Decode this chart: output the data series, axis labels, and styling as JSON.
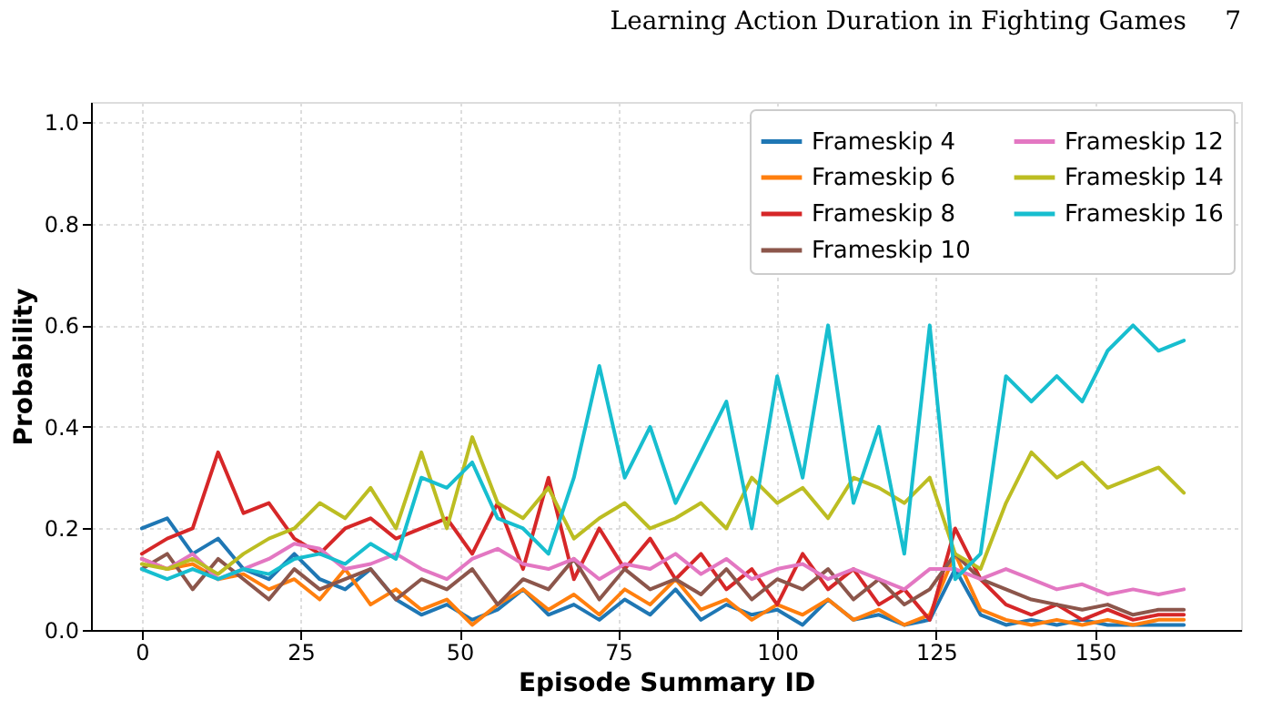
{
  "chart_data": {
    "type": "line",
    "xlabel": "Episode Summary ID",
    "ylabel": "Probability",
    "annotations": [
      "Learning Action Duration in Fighting Games",
      "7"
    ],
    "x": [
      0,
      4,
      8,
      12,
      16,
      20,
      24,
      28,
      32,
      36,
      40,
      44,
      48,
      52,
      56,
      60,
      64,
      68,
      72,
      76,
      80,
      84,
      88,
      92,
      96,
      100,
      104,
      108,
      112,
      116,
      120,
      124,
      128,
      132,
      136,
      140,
      144,
      148,
      152,
      156,
      160,
      164
    ],
    "series": [
      {
        "name": "Frameskip 4",
        "color": "#1f77b4",
        "values": [
          0.2,
          0.22,
          0.15,
          0.18,
          0.12,
          0.1,
          0.15,
          0.1,
          0.08,
          0.12,
          0.06,
          0.03,
          0.05,
          0.02,
          0.04,
          0.08,
          0.03,
          0.05,
          0.02,
          0.06,
          0.03,
          0.08,
          0.02,
          0.05,
          0.03,
          0.04,
          0.01,
          0.06,
          0.02,
          0.03,
          0.01,
          0.02,
          0.12,
          0.03,
          0.01,
          0.02,
          0.01,
          0.02,
          0.01,
          0.01,
          0.01,
          0.01
        ]
      },
      {
        "name": "Frameskip 6",
        "color": "#ff7f0e",
        "values": [
          0.14,
          0.12,
          0.13,
          0.1,
          0.11,
          0.08,
          0.1,
          0.06,
          0.12,
          0.05,
          0.08,
          0.04,
          0.06,
          0.01,
          0.05,
          0.08,
          0.04,
          0.07,
          0.03,
          0.08,
          0.05,
          0.1,
          0.04,
          0.06,
          0.02,
          0.05,
          0.03,
          0.06,
          0.02,
          0.04,
          0.01,
          0.03,
          0.15,
          0.04,
          0.02,
          0.01,
          0.02,
          0.01,
          0.02,
          0.01,
          0.02,
          0.02
        ]
      },
      {
        "name": "Frameskip 8",
        "color": "#d62728",
        "values": [
          0.15,
          0.18,
          0.2,
          0.35,
          0.23,
          0.25,
          0.18,
          0.15,
          0.2,
          0.22,
          0.18,
          0.2,
          0.22,
          0.15,
          0.25,
          0.12,
          0.3,
          0.1,
          0.2,
          0.12,
          0.18,
          0.1,
          0.15,
          0.08,
          0.12,
          0.05,
          0.15,
          0.08,
          0.12,
          0.05,
          0.08,
          0.02,
          0.2,
          0.1,
          0.05,
          0.03,
          0.05,
          0.02,
          0.04,
          0.02,
          0.03,
          0.03
        ]
      },
      {
        "name": "Frameskip 10",
        "color": "#8c564b",
        "values": [
          0.12,
          0.15,
          0.08,
          0.14,
          0.1,
          0.06,
          0.12,
          0.08,
          0.1,
          0.12,
          0.06,
          0.1,
          0.08,
          0.12,
          0.05,
          0.1,
          0.08,
          0.14,
          0.06,
          0.12,
          0.08,
          0.1,
          0.07,
          0.12,
          0.06,
          0.1,
          0.08,
          0.12,
          0.06,
          0.1,
          0.05,
          0.08,
          0.15,
          0.1,
          0.08,
          0.06,
          0.05,
          0.04,
          0.05,
          0.03,
          0.04,
          0.04
        ]
      },
      {
        "name": "Frameskip 12",
        "color": "#e377c2",
        "values": [
          0.14,
          0.12,
          0.15,
          0.1,
          0.12,
          0.14,
          0.17,
          0.16,
          0.12,
          0.13,
          0.15,
          0.12,
          0.1,
          0.14,
          0.16,
          0.13,
          0.12,
          0.14,
          0.1,
          0.13,
          0.12,
          0.15,
          0.11,
          0.14,
          0.1,
          0.12,
          0.13,
          0.1,
          0.12,
          0.1,
          0.08,
          0.12,
          0.12,
          0.1,
          0.12,
          0.1,
          0.08,
          0.09,
          0.07,
          0.08,
          0.07,
          0.08
        ]
      },
      {
        "name": "Frameskip 14",
        "color": "#bcbd22",
        "values": [
          0.13,
          0.12,
          0.14,
          0.11,
          0.15,
          0.18,
          0.2,
          0.25,
          0.22,
          0.28,
          0.2,
          0.35,
          0.2,
          0.38,
          0.25,
          0.22,
          0.28,
          0.18,
          0.22,
          0.25,
          0.2,
          0.22,
          0.25,
          0.2,
          0.3,
          0.25,
          0.28,
          0.22,
          0.3,
          0.28,
          0.25,
          0.3,
          0.15,
          0.12,
          0.25,
          0.35,
          0.3,
          0.33,
          0.28,
          0.3,
          0.32,
          0.27
        ]
      },
      {
        "name": "Frameskip 16",
        "color": "#17becf",
        "values": [
          0.12,
          0.1,
          0.12,
          0.1,
          0.12,
          0.11,
          0.14,
          0.15,
          0.13,
          0.17,
          0.14,
          0.3,
          0.28,
          0.33,
          0.22,
          0.2,
          0.15,
          0.3,
          0.52,
          0.3,
          0.4,
          0.25,
          0.35,
          0.45,
          0.2,
          0.5,
          0.3,
          0.6,
          0.25,
          0.4,
          0.15,
          0.6,
          0.1,
          0.15,
          0.5,
          0.45,
          0.5,
          0.45,
          0.55,
          0.6,
          0.55,
          0.57
        ]
      }
    ],
    "xlim": [
      -8,
      173
    ],
    "xticks": [
      0,
      25,
      50,
      75,
      100,
      125,
      150
    ],
    "ylim": [
      0,
      1.04
    ],
    "yticks": [
      {
        "value": 0,
        "label": "0.0"
      },
      0.2,
      0.4,
      0.6,
      0.8,
      {
        "value": 1,
        "label": "1.0"
      }
    ],
    "grid": true,
    "legend": "top right",
    "marker": "none",
    "line_style": "solid"
  }
}
